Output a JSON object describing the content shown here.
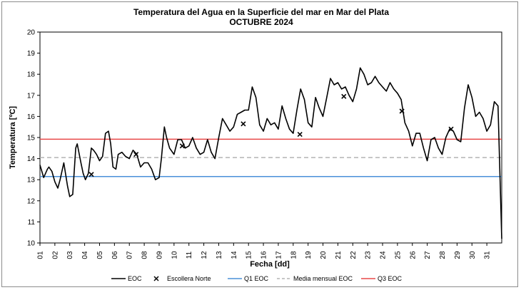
{
  "chart_data": {
    "type": "line",
    "title": "Temperatura del Agua en la Superficie del mar en Mar del Plata",
    "subtitle": "OCTUBRE 2024",
    "xlabel": "Fecha [dd]",
    "ylabel": "Temperatura [ºC]",
    "ylim": [
      10,
      20
    ],
    "xlim": [
      1,
      32
    ],
    "grid": false,
    "legend_position": "bottom",
    "x_ticks": [
      "01",
      "02",
      "03",
      "04",
      "05",
      "06",
      "07",
      "08",
      "09",
      "10",
      "11",
      "12",
      "13",
      "14",
      "15",
      "16",
      "17",
      "18",
      "19",
      "20",
      "21",
      "22",
      "23",
      "24",
      "25",
      "26",
      "27",
      "28",
      "29",
      "30",
      "31"
    ],
    "y_ticks": [
      10,
      11,
      12,
      13,
      14,
      15,
      16,
      17,
      18,
      19,
      20
    ],
    "series": [
      {
        "name": "EOC",
        "style": "line",
        "color": "#000000",
        "x": [
          1.0,
          1.25,
          1.5,
          1.6,
          1.8,
          2.0,
          2.2,
          2.35,
          2.6,
          2.85,
          3.0,
          3.2,
          3.4,
          3.5,
          3.75,
          3.9,
          4.05,
          4.25,
          4.45,
          4.6,
          4.8,
          5.0,
          5.2,
          5.4,
          5.6,
          5.75,
          5.9,
          6.1,
          6.25,
          6.5,
          6.75,
          7.0,
          7.25,
          7.5,
          7.75,
          8.0,
          8.25,
          8.5,
          8.75,
          9.0,
          9.15,
          9.35,
          9.5,
          9.7,
          10.0,
          10.25,
          10.5,
          10.75,
          11.0,
          11.25,
          11.5,
          11.75,
          12.0,
          12.25,
          12.5,
          12.75,
          13.0,
          13.25,
          13.5,
          13.75,
          14.0,
          14.25,
          14.5,
          14.75,
          15.0,
          15.25,
          15.5,
          15.75,
          16.0,
          16.25,
          16.5,
          16.75,
          17.0,
          17.25,
          17.5,
          17.75,
          18.0,
          18.25,
          18.5,
          18.75,
          19.0,
          19.25,
          19.5,
          19.75,
          20.0,
          20.25,
          20.5,
          20.75,
          21.0,
          21.25,
          21.5,
          21.75,
          22.0,
          22.25,
          22.5,
          22.75,
          23.0,
          23.25,
          23.5,
          23.75,
          24.0,
          24.25,
          24.5,
          24.75,
          25.0,
          25.25,
          25.5,
          25.75,
          26.0,
          26.25,
          26.5,
          26.75,
          27.0,
          27.25,
          27.5,
          27.75,
          28.0,
          28.25,
          28.5,
          28.75,
          29.0,
          29.25,
          29.5,
          29.75,
          30.0,
          30.25,
          30.5,
          30.75,
          31.0,
          31.25,
          31.5,
          31.75,
          32.0
        ],
        "values": [
          13.7,
          13.1,
          13.5,
          13.6,
          13.4,
          12.9,
          12.6,
          13.0,
          13.8,
          12.7,
          12.2,
          12.3,
          14.5,
          14.7,
          13.8,
          13.3,
          13.0,
          13.3,
          14.5,
          14.4,
          14.2,
          13.9,
          14.1,
          15.2,
          15.3,
          14.7,
          13.6,
          13.5,
          14.2,
          14.3,
          14.1,
          14.0,
          14.4,
          14.2,
          13.6,
          13.8,
          13.8,
          13.5,
          13.0,
          13.1,
          14.0,
          15.5,
          15.0,
          14.5,
          14.2,
          14.9,
          14.9,
          14.5,
          14.6,
          15.0,
          14.5,
          14.2,
          14.3,
          14.9,
          14.3,
          14.0,
          15.0,
          15.9,
          15.6,
          15.3,
          15.5,
          16.1,
          16.2,
          16.3,
          16.3,
          17.4,
          16.9,
          15.6,
          15.3,
          15.9,
          15.6,
          15.7,
          15.4,
          16.5,
          15.9,
          15.4,
          15.2,
          16.3,
          17.3,
          16.8,
          15.7,
          15.5,
          16.9,
          16.4,
          16.0,
          16.9,
          17.8,
          17.5,
          17.6,
          17.3,
          17.4,
          17.0,
          16.7,
          17.3,
          18.3,
          18.0,
          17.5,
          17.6,
          17.9,
          17.6,
          17.4,
          17.2,
          17.6,
          17.3,
          17.1,
          16.8,
          15.7,
          15.3,
          14.6,
          15.2,
          15.2,
          14.5,
          13.9,
          14.9,
          15.0,
          14.5,
          14.2,
          15.0,
          15.4,
          15.3,
          14.9,
          14.8,
          16.4,
          17.5,
          16.9,
          16.0,
          16.2,
          15.9,
          15.3,
          15.6,
          16.7,
          16.5,
          10.2
        ]
      },
      {
        "name": "Escollera Norte",
        "style": "x-markers",
        "color": "#000000",
        "x": [
          4.45,
          7.45,
          10.55,
          14.65,
          18.45,
          21.4,
          25.3,
          28.6
        ],
        "values": [
          13.25,
          14.2,
          14.6,
          15.65,
          15.15,
          16.95,
          16.25,
          15.4
        ]
      },
      {
        "name": "Q1 EOC",
        "style": "hline",
        "color": "#4a90d9",
        "values": [
          13.15
        ]
      },
      {
        "name": "Media mensual EOC",
        "style": "hline-dashed",
        "color": "#b4b4b4",
        "values": [
          14.05
        ]
      },
      {
        "name": "Q3  EOC",
        "style": "hline",
        "color": "#e84848",
        "values": [
          14.92
        ]
      }
    ]
  }
}
